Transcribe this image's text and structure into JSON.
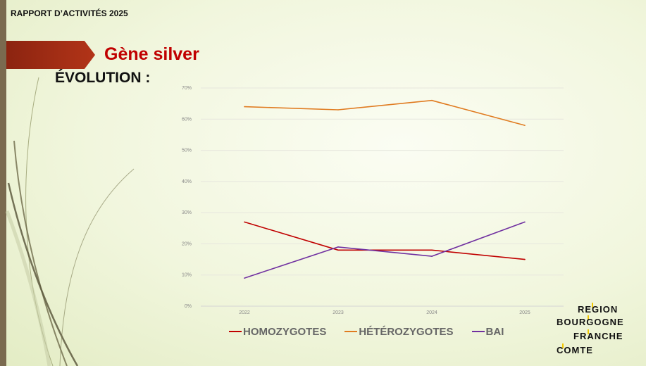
{
  "header": {
    "report_title": "RAPPORT D’ACTIVITÉS 2025",
    "slide_title": "Gène silver",
    "section_label": "ÉVOLUTION :"
  },
  "chart_data": {
    "type": "line",
    "x": [
      "2022",
      "2023",
      "2024",
      "2025"
    ],
    "y_ticks": [
      "0%",
      "10%",
      "20%",
      "30%",
      "40%",
      "50%",
      "60%",
      "70%"
    ],
    "ylim": [
      0,
      70
    ],
    "grid": true,
    "legend_position": "bottom",
    "series": [
      {
        "name": "HOMOZYGOTES",
        "color": "#c00000",
        "values": [
          27,
          18,
          18,
          15
        ]
      },
      {
        "name": "HÉTÉROZYGOTES",
        "color": "#e07b20",
        "values": [
          64,
          63,
          66,
          58
        ]
      },
      {
        "name": "BAI",
        "color": "#7030a0",
        "values": [
          9,
          19,
          16,
          27
        ]
      }
    ]
  },
  "logo": {
    "line1": "REGION",
    "line2": "BOURGOGNE",
    "line3": "FRANCHE",
    "line4": "COMTE",
    "accent_color": "#f2c700"
  }
}
